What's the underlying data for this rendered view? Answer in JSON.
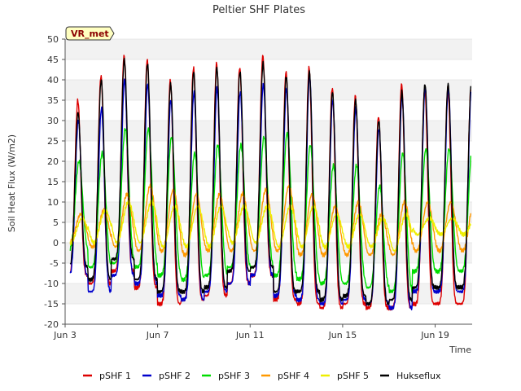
{
  "chart_data": {
    "type": "line",
    "title": "Peltier SHF Plates",
    "xlabel": "Time",
    "ylabel": "Soil Heat Flux (W/m2)",
    "badge": "VR_met",
    "xlim": [
      0,
      17.6
    ],
    "ylim": [
      -20,
      50
    ],
    "yticks": [
      -20,
      -15,
      -10,
      -5,
      0,
      5,
      10,
      15,
      20,
      25,
      30,
      35,
      40,
      45,
      50
    ],
    "xticks": [
      {
        "label": "Jun 3",
        "day": 0
      },
      {
        "label": "Jun 7",
        "day": 4
      },
      {
        "label": "Jun 11",
        "day": 8
      },
      {
        "label": "Jun 15",
        "day": 12
      },
      {
        "label": "Jun 19",
        "day": 16
      }
    ],
    "x_unit": "days since Jun 3 00:00",
    "series": [
      {
        "name": "pSHF 1",
        "color": "#dd0000",
        "start": 0.22,
        "end": 17.55,
        "peaks": [
          35,
          41,
          46,
          45,
          40,
          43,
          44,
          43,
          46,
          42,
          43,
          38,
          36,
          31,
          39,
          38
        ],
        "troughs": [
          -8,
          -10,
          -7,
          -11,
          -15,
          -14,
          -13,
          -10,
          -8,
          -14,
          -15,
          -16,
          -15,
          -16,
          -16,
          -15
        ]
      },
      {
        "name": "pSHF 2",
        "color": "#0000cc",
        "start": 0.22,
        "end": 17.55,
        "peaks": [
          30,
          33,
          40,
          39,
          35,
          37,
          38,
          37,
          39,
          38,
          41,
          35,
          33,
          28,
          36,
          38
        ],
        "troughs": [
          -8,
          -12,
          -8,
          -10,
          -13,
          -14,
          -12,
          -10,
          -8,
          -13,
          -14,
          -15,
          -14,
          -15,
          -16,
          -12
        ]
      },
      {
        "name": "pSHF 3",
        "color": "#00dd00",
        "start": 0.22,
        "end": 17.55,
        "peaks": [
          20,
          22,
          28,
          28,
          26,
          22,
          24,
          24,
          26,
          27,
          24,
          19,
          19,
          14,
          22,
          23
        ],
        "troughs": [
          -2,
          -6,
          -5,
          -6,
          -8,
          -9,
          -8,
          -6,
          -6,
          -8,
          -9,
          -10,
          -10,
          -11,
          -12,
          -7
        ]
      },
      {
        "name": "pSHF 4",
        "color": "#ff9900",
        "start": 0.22,
        "end": 17.55,
        "peaks": [
          7,
          8,
          12,
          14,
          13,
          12,
          12,
          12,
          13,
          14,
          12,
          9,
          10,
          7,
          10,
          10
        ],
        "troughs": [
          0,
          -1,
          -1,
          -2,
          -2,
          -3,
          -2,
          -2,
          -2,
          -2,
          -3,
          -3,
          -3,
          -3,
          -3,
          -2
        ]
      },
      {
        "name": "pSHF 5",
        "color": "#eeee00",
        "start": 0.22,
        "end": 17.55,
        "peaks": [
          6,
          8,
          10,
          10,
          9,
          9,
          9,
          9,
          9,
          9,
          9,
          7,
          7,
          6,
          7,
          6
        ],
        "troughs": [
          0,
          0,
          0,
          0,
          -1,
          -1,
          -1,
          0,
          0,
          -1,
          -1,
          -1,
          -1,
          -1,
          -2,
          2
        ]
      },
      {
        "name": "Hukseflux",
        "color": "#000000",
        "start": 0.22,
        "end": 17.55,
        "peaks": [
          32,
          40,
          45,
          44,
          39,
          42,
          43,
          42,
          44,
          41,
          42,
          37,
          35,
          30,
          37,
          39
        ],
        "troughs": [
          -6,
          -9,
          -4,
          -9,
          -12,
          -12,
          -11,
          -7,
          -6,
          -12,
          -12,
          -14,
          -13,
          -15,
          -14,
          -11
        ]
      }
    ],
    "legend_position": "bottom-center",
    "background_bands": true
  }
}
